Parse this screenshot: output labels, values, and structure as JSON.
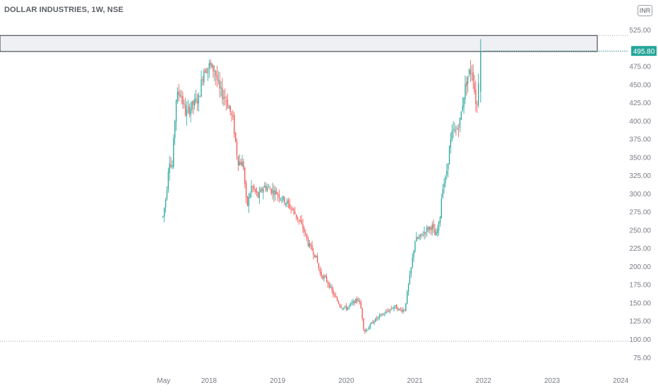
{
  "header": {
    "title": "DOLLAR INDUSTRIES, 1W, NSE",
    "currency": "INR"
  },
  "colors": {
    "up": "#26a69a",
    "down": "#ef5350",
    "axis_text": "#787b86",
    "price_badge": "#26a69a",
    "zone_fill": "#eef0f3",
    "dotted": "#9aa0a8"
  },
  "chart_data": {
    "type": "candlestick",
    "title": "DOLLAR INDUSTRIES, 1W, NSE",
    "xlabel": "",
    "ylabel": "",
    "ylim": [
      70,
      540
    ],
    "y_ticks": [
      75,
      100,
      125,
      150,
      175,
      200,
      225,
      250,
      275,
      300,
      325,
      350,
      375,
      400,
      425,
      450,
      475,
      525
    ],
    "x_ticks": [
      "May",
      "2018",
      "2019",
      "2020",
      "2021",
      "2022",
      "2023",
      "2024"
    ],
    "x_tick_years": [
      2017.34,
      2018.0,
      2019.0,
      2020.0,
      2021.0,
      2022.0,
      2023.0,
      2024.0
    ],
    "last_price": 495.8,
    "resistance_zone": [
      495,
      517
    ],
    "support_level": 97,
    "grid": false,
    "anchors": [
      [
        2017.33,
        268
      ],
      [
        2017.38,
        300
      ],
      [
        2017.42,
        350
      ],
      [
        2017.46,
        330
      ],
      [
        2017.52,
        430
      ],
      [
        2017.58,
        440
      ],
      [
        2017.66,
        410
      ],
      [
        2017.75,
        420
      ],
      [
        2017.85,
        430
      ],
      [
        2017.92,
        470
      ],
      [
        2018.0,
        475
      ],
      [
        2018.08,
        470
      ],
      [
        2018.16,
        440
      ],
      [
        2018.25,
        430
      ],
      [
        2018.35,
        400
      ],
      [
        2018.42,
        345
      ],
      [
        2018.5,
        340
      ],
      [
        2018.55,
        280
      ],
      [
        2018.62,
        310
      ],
      [
        2018.72,
        295
      ],
      [
        2018.8,
        310
      ],
      [
        2018.9,
        305
      ],
      [
        2019.0,
        300
      ],
      [
        2019.1,
        290
      ],
      [
        2019.2,
        280
      ],
      [
        2019.3,
        265
      ],
      [
        2019.38,
        250
      ],
      [
        2019.45,
        230
      ],
      [
        2019.55,
        215
      ],
      [
        2019.62,
        190
      ],
      [
        2019.72,
        180
      ],
      [
        2019.82,
        160
      ],
      [
        2019.92,
        145
      ],
      [
        2020.0,
        142
      ],
      [
        2020.1,
        150
      ],
      [
        2020.18,
        155
      ],
      [
        2020.22,
        140
      ],
      [
        2020.26,
        110
      ],
      [
        2020.32,
        115
      ],
      [
        2020.4,
        125
      ],
      [
        2020.5,
        132
      ],
      [
        2020.6,
        138
      ],
      [
        2020.7,
        145
      ],
      [
        2020.78,
        140
      ],
      [
        2020.85,
        140
      ],
      [
        2020.9,
        170
      ],
      [
        2020.95,
        200
      ],
      [
        2021.0,
        235
      ],
      [
        2021.08,
        240
      ],
      [
        2021.16,
        250
      ],
      [
        2021.25,
        255
      ],
      [
        2021.3,
        240
      ],
      [
        2021.36,
        260
      ],
      [
        2021.4,
        310
      ],
      [
        2021.45,
        320
      ],
      [
        2021.5,
        360
      ],
      [
        2021.55,
        385
      ],
      [
        2021.6,
        385
      ],
      [
        2021.66,
        400
      ],
      [
        2021.72,
        440
      ],
      [
        2021.78,
        465
      ],
      [
        2021.84,
        470
      ],
      [
        2021.88,
        430
      ],
      [
        2021.91,
        420
      ],
      [
        2021.94,
        490
      ]
    ]
  }
}
